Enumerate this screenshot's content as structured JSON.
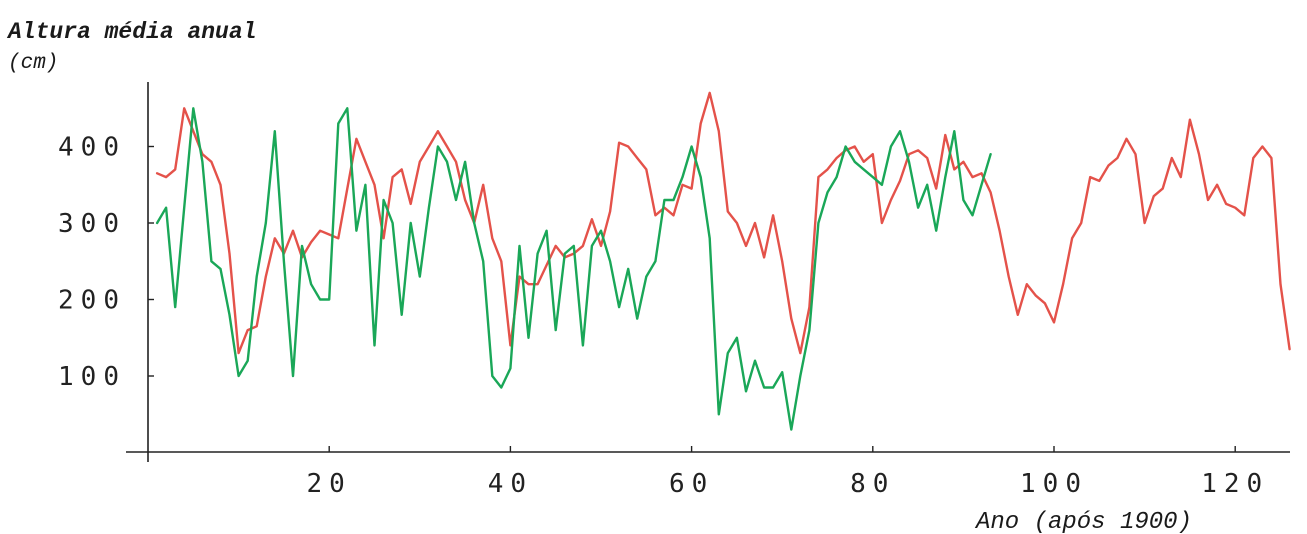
{
  "chart_data": {
    "type": "line",
    "title": "",
    "ylabel": "Altura média anual",
    "ylabel_unit": "(cm)",
    "xlabel": "Ano (após 1900)",
    "xlim": [
      0,
      127
    ],
    "ylim": [
      0,
      490
    ],
    "x_ticks": [
      20,
      40,
      60,
      80,
      100,
      120
    ],
    "y_ticks": [
      100,
      200,
      300,
      400
    ],
    "x_tick_labels": [
      "20",
      "40",
      "60",
      "80",
      "100",
      "120"
    ],
    "y_tick_labels": [
      "100",
      "200",
      "300",
      "400"
    ],
    "grid": false,
    "legend": "none",
    "series": [
      {
        "color": "#e4524a",
        "x": [
          1,
          2,
          3,
          4,
          5,
          6,
          7,
          8,
          9,
          10,
          11,
          12,
          13,
          14,
          15,
          16,
          17,
          18,
          19,
          20,
          21,
          22,
          23,
          24,
          25,
          26,
          27,
          28,
          29,
          30,
          31,
          32,
          33,
          34,
          35,
          36,
          37,
          38,
          39,
          40,
          41,
          42,
          43,
          44,
          45,
          46,
          47,
          48,
          49,
          50,
          51,
          52,
          53,
          54,
          55,
          56,
          57,
          58,
          59,
          60,
          61,
          62,
          63,
          64,
          65,
          66,
          67,
          68,
          69,
          70,
          71,
          72,
          73,
          74,
          75,
          76,
          77,
          78,
          79,
          80,
          81,
          82,
          83,
          84,
          85,
          86,
          87,
          88,
          89,
          90,
          91,
          92,
          93,
          94,
          95,
          96,
          97,
          98,
          99,
          100,
          101,
          102,
          103,
          104,
          105,
          106,
          107,
          108,
          109,
          110,
          111,
          112,
          113,
          114,
          115,
          116,
          117,
          118,
          119,
          120,
          121,
          122,
          123,
          124,
          125,
          126
        ],
        "values": [
          365,
          360,
          370,
          450,
          420,
          390,
          380,
          350,
          260,
          130,
          160,
          165,
          230,
          280,
          260,
          290,
          255,
          275,
          290,
          285,
          280,
          345,
          410,
          380,
          350,
          280,
          360,
          370,
          325,
          380,
          400,
          420,
          400,
          380,
          330,
          300,
          350,
          280,
          250,
          140,
          230,
          220,
          220,
          245,
          270,
          255,
          260,
          270,
          305,
          270,
          315,
          405,
          400,
          385,
          370,
          310,
          320,
          310,
          350,
          345,
          430,
          470,
          420,
          315,
          300,
          270,
          300,
          255,
          310,
          250,
          175,
          130,
          190,
          360,
          370,
          385,
          395,
          400,
          380,
          390,
          300,
          330,
          355,
          390,
          395,
          385,
          345,
          415,
          370,
          380,
          360,
          365,
          340,
          290,
          230,
          180,
          220,
          205,
          195,
          170,
          220,
          280,
          300,
          360,
          355,
          375,
          385,
          410,
          390,
          300,
          335,
          345,
          385,
          360,
          435,
          390,
          330,
          350,
          325,
          320,
          310,
          385,
          400,
          385,
          220,
          135
        ]
      },
      {
        "color": "#1aa758",
        "x": [
          1,
          2,
          3,
          4,
          5,
          6,
          7,
          8,
          9,
          10,
          11,
          12,
          13,
          14,
          15,
          16,
          17,
          18,
          19,
          20,
          21,
          22,
          23,
          24,
          25,
          26,
          27,
          28,
          29,
          30,
          31,
          32,
          33,
          34,
          35,
          36,
          37,
          38,
          39,
          40,
          41,
          42,
          43,
          44,
          45,
          46,
          47,
          48,
          49,
          50,
          51,
          52,
          53,
          54,
          55,
          56,
          57,
          58,
          59,
          60,
          61,
          62,
          63,
          64,
          65,
          66,
          67,
          68,
          69,
          70,
          71,
          72,
          73,
          74,
          75,
          76,
          77,
          78,
          79,
          80,
          81,
          82,
          83,
          84,
          85,
          86,
          87,
          88,
          89,
          90,
          91,
          92,
          93
        ],
        "values": [
          300,
          320,
          190,
          320,
          450,
          380,
          250,
          240,
          180,
          100,
          120,
          230,
          300,
          420,
          250,
          100,
          270,
          220,
          200,
          200,
          430,
          450,
          290,
          350,
          140,
          330,
          300,
          180,
          300,
          230,
          320,
          400,
          380,
          330,
          380,
          300,
          250,
          100,
          85,
          110,
          270,
          150,
          260,
          290,
          160,
          260,
          270,
          140,
          270,
          290,
          250,
          190,
          240,
          175,
          230,
          250,
          330,
          330,
          360,
          400,
          360,
          280,
          50,
          130,
          150,
          80,
          120,
          85,
          85,
          105,
          30,
          100,
          160,
          300,
          340,
          360,
          400,
          380,
          370,
          360,
          350,
          400,
          420,
          380,
          320,
          350,
          290,
          360,
          420,
          330,
          310,
          350,
          390
        ]
      }
    ]
  }
}
